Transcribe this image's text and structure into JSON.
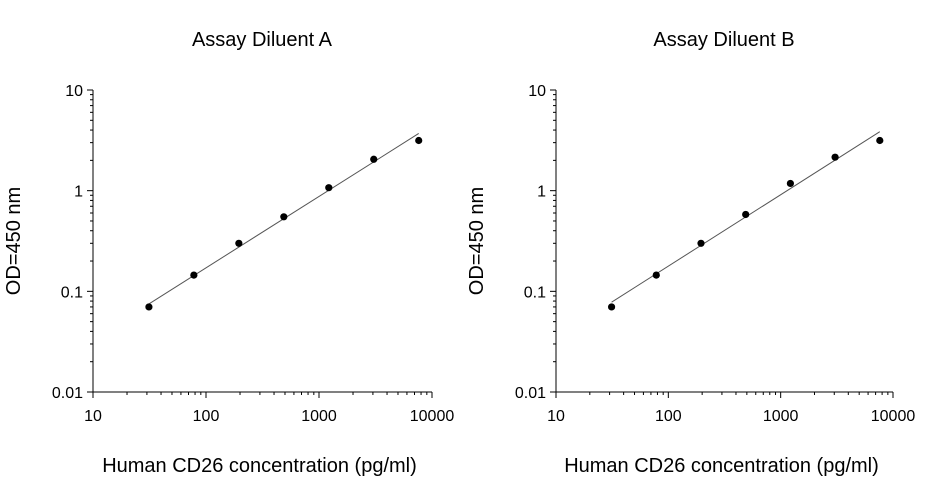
{
  "chart_data": [
    {
      "type": "scatter",
      "title": "Assay Diluent  A",
      "xlabel": "Human CD26 concentration (pg/ml)",
      "ylabel": "OD=450 nm",
      "x_scale": "log",
      "y_scale": "log",
      "xlim": [
        10,
        10000
      ],
      "ylim": [
        0.01,
        10
      ],
      "x_ticks": [
        "10",
        "100",
        "1000",
        "10000"
      ],
      "y_ticks": [
        "0.01",
        "0.1",
        "1",
        "10"
      ],
      "grid": false,
      "points": [
        {
          "x": 31.25,
          "y": 0.07
        },
        {
          "x": 78.1,
          "y": 0.145
        },
        {
          "x": 195.3,
          "y": 0.3
        },
        {
          "x": 488.3,
          "y": 0.55
        },
        {
          "x": 1220.7,
          "y": 1.07
        },
        {
          "x": 3051.8,
          "y": 2.05
        },
        {
          "x": 7629.4,
          "y": 3.15
        }
      ],
      "fit_line": {
        "x": [
          31.25,
          7629.4
        ],
        "y": [
          0.075,
          3.7
        ]
      },
      "colors": {
        "points": "#000000",
        "line": "#555555",
        "axis": "#000000"
      }
    },
    {
      "type": "scatter",
      "title": "Assay Diluent  B",
      "xlabel": "Human CD26 concentration (pg/ml)",
      "ylabel": "OD=450 nm",
      "x_scale": "log",
      "y_scale": "log",
      "xlim": [
        10,
        10000
      ],
      "ylim": [
        0.01,
        10
      ],
      "x_ticks": [
        "10",
        "100",
        "1000",
        "10000"
      ],
      "y_ticks": [
        "0.01",
        "0.1",
        "1",
        "10"
      ],
      "grid": false,
      "points": [
        {
          "x": 31.25,
          "y": 0.07
        },
        {
          "x": 78.1,
          "y": 0.145
        },
        {
          "x": 195.3,
          "y": 0.3
        },
        {
          "x": 488.3,
          "y": 0.58
        },
        {
          "x": 1220.7,
          "y": 1.18
        },
        {
          "x": 3051.8,
          "y": 2.15
        },
        {
          "x": 7629.4,
          "y": 3.15
        }
      ],
      "fit_line": {
        "x": [
          31.25,
          7629.4
        ],
        "y": [
          0.078,
          3.85
        ]
      },
      "colors": {
        "points": "#000000",
        "line": "#555555",
        "axis": "#000000"
      }
    }
  ]
}
